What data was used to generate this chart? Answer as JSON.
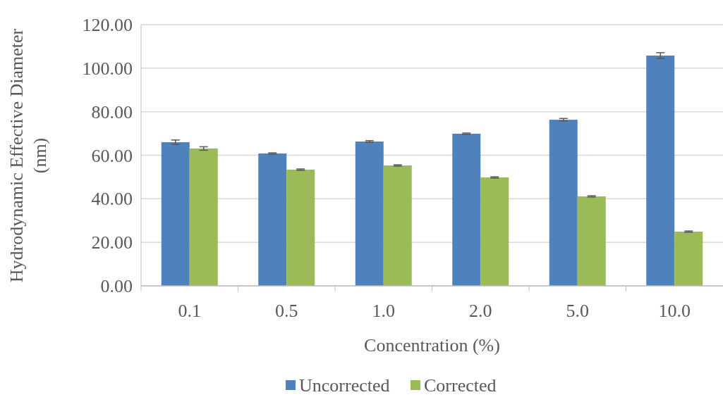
{
  "chart_data": {
    "type": "bar",
    "xlabel": "Concentration (%)",
    "ylabel": "Hydrodynamic Effective Diameter (nm)",
    "categories": [
      "0.1",
      "0.5",
      "1.0",
      "2.0",
      "5.0",
      "10.0"
    ],
    "series": [
      {
        "name": "Uncorrected",
        "color": "#4f81bd",
        "values": [
          66.0,
          60.8,
          66.3,
          69.9,
          76.3,
          105.8
        ],
        "errors": [
          1.0,
          0.3,
          0.4,
          0.3,
          0.6,
          1.3
        ]
      },
      {
        "name": "Corrected",
        "color": "#9bbb59",
        "values": [
          63.1,
          53.4,
          55.3,
          49.8,
          41.1,
          24.9
        ],
        "errors": [
          0.8,
          0.3,
          0.3,
          0.3,
          0.3,
          0.3
        ]
      }
    ],
    "ylim": [
      0,
      120
    ],
    "yticks": [
      {
        "value": 0,
        "label": "0.00"
      },
      {
        "value": 20,
        "label": "20.00"
      },
      {
        "value": 40,
        "label": "40.00"
      },
      {
        "value": 60,
        "label": "60.00"
      },
      {
        "value": 80,
        "label": "80.00"
      },
      {
        "value": 100,
        "label": "100.00"
      },
      {
        "value": 120,
        "label": "120.00"
      }
    ],
    "grid": "y",
    "legend": "bottom"
  }
}
